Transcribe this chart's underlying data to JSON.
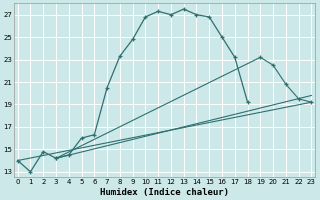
{
  "xlabel": "Humidex (Indice chaleur)",
  "background_color": "#cce8e8",
  "grid_color": "#ffffff",
  "line_color": "#2e7070",
  "xlim": [
    0,
    23
  ],
  "ylim": [
    12.5,
    28.0
  ],
  "xticks": [
    0,
    1,
    2,
    3,
    4,
    5,
    6,
    7,
    8,
    9,
    10,
    11,
    12,
    13,
    14,
    15,
    16,
    17,
    18,
    19,
    20,
    21,
    22,
    23
  ],
  "yticks": [
    13,
    15,
    17,
    19,
    21,
    23,
    25,
    27
  ],
  "curve1_x": [
    0,
    1,
    2,
    3,
    4,
    5,
    6,
    7,
    8,
    9,
    10,
    11,
    12,
    13,
    14,
    15,
    16,
    17,
    18
  ],
  "curve1_y": [
    14.0,
    13.0,
    14.8,
    14.2,
    14.5,
    16.0,
    16.3,
    20.5,
    23.3,
    24.8,
    26.8,
    27.3,
    27.0,
    27.5,
    27.0,
    26.8,
    25.0,
    23.2,
    19.2
  ],
  "curve2_x": [
    0,
    23
  ],
  "curve2_y": [
    14.0,
    19.2
  ],
  "curve3_x": [
    3,
    23
  ],
  "curve3_y": [
    14.2,
    19.8
  ],
  "curve4_x": [
    3,
    19,
    20,
    21,
    22,
    23
  ],
  "curve4_y": [
    14.2,
    23.2,
    22.5,
    20.8,
    19.5,
    19.2
  ]
}
